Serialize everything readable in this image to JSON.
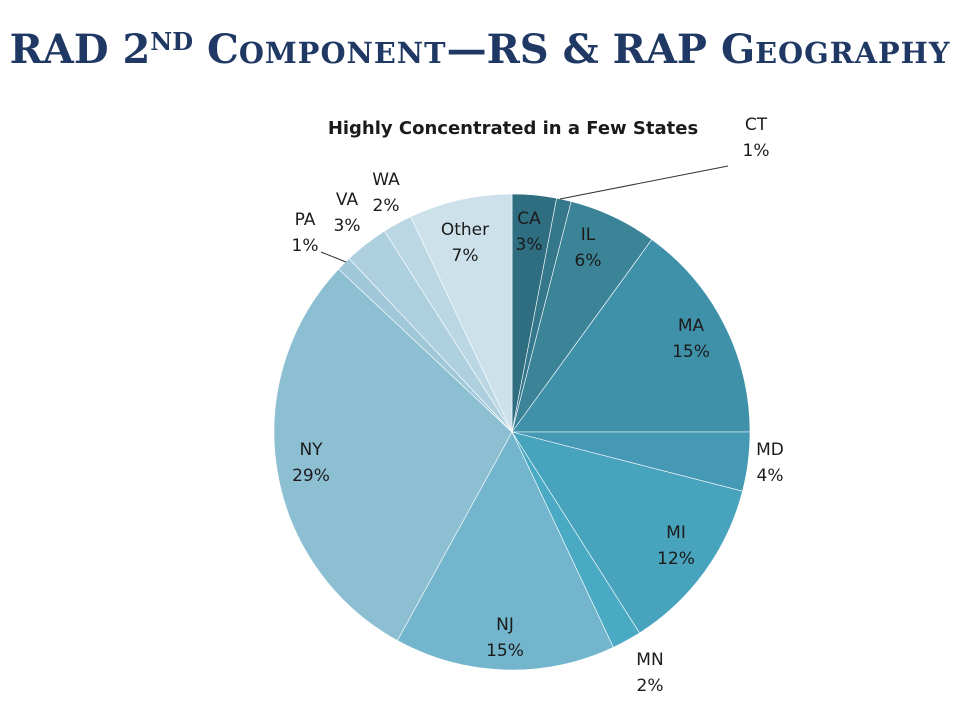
{
  "slide": {
    "title": {
      "p1": "RAD 2",
      "sup": "ND",
      "p2": "C",
      "p2sc": "OMPONENT",
      "p3": "—RS & RAP G",
      "p3sc": "EOGRAPHY"
    }
  },
  "chart_data": {
    "type": "pie",
    "title": "Highly Concentrated in a Few States",
    "slices": [
      {
        "label": "CA",
        "value": 3,
        "display": "3%",
        "color": "#2f6d80"
      },
      {
        "label": "CT",
        "value": 1,
        "display": "1%",
        "color": "#35788c"
      },
      {
        "label": "IL",
        "value": 6,
        "display": "6%",
        "color": "#3b8397"
      },
      {
        "label": "MA",
        "value": 15,
        "display": "15%",
        "color": "#3f90a9"
      },
      {
        "label": "MD",
        "value": 4,
        "display": "4%",
        "color": "#4699b4"
      },
      {
        "label": "MI",
        "value": 12,
        "display": "12%",
        "color": "#48a3bd"
      },
      {
        "label": "MN",
        "value": 2,
        "display": "2%",
        "color": "#4aaac4"
      },
      {
        "label": "NJ",
        "value": 15,
        "display": "15%",
        "color": "#72b5cc"
      },
      {
        "label": "NY",
        "value": 29,
        "display": "29%",
        "color": "#8dbfd2"
      },
      {
        "label": "PA",
        "value": 1,
        "display": "1%",
        "color": "#a0c8d8"
      },
      {
        "label": "VA",
        "value": 3,
        "display": "3%",
        "color": "#aed0de"
      },
      {
        "label": "WA",
        "value": 2,
        "display": "2%",
        "color": "#bad7e3"
      },
      {
        "label": "Other",
        "value": 7,
        "display": "7%",
        "color": "#cde1ea"
      }
    ]
  }
}
